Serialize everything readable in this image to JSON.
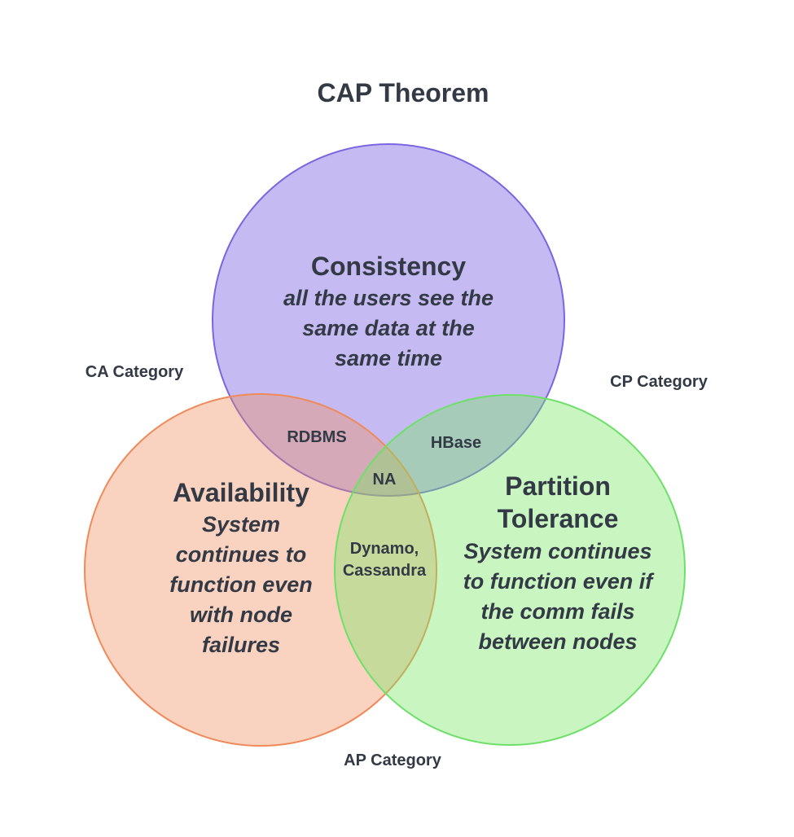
{
  "title": "CAP Theorem",
  "circles": {
    "consistency": {
      "heading": "Consistency",
      "description": [
        "all the users see the",
        "same data at the",
        "same time"
      ],
      "fill": "#8c78e6",
      "stroke": "#7a66e0"
    },
    "availability": {
      "heading": "Availability",
      "description": [
        "System",
        "continues to",
        "function even",
        "with node",
        "failures"
      ],
      "fill": "#f08c5a",
      "stroke": "#f08a5a"
    },
    "partition": {
      "heading": [
        "Partition",
        "Tolerance"
      ],
      "description": [
        "System continues",
        "to function even if",
        "the comm fails",
        "between nodes"
      ],
      "fill": "#78e664",
      "stroke": "#6ee06a"
    }
  },
  "categories": {
    "ca": "CA Category",
    "cp": "CP Category",
    "ap": "AP Category"
  },
  "intersections": {
    "ca": "RDBMS",
    "cp": "HBase",
    "cap": "NA",
    "ap": [
      "Dynamo,",
      "Cassandra"
    ]
  }
}
